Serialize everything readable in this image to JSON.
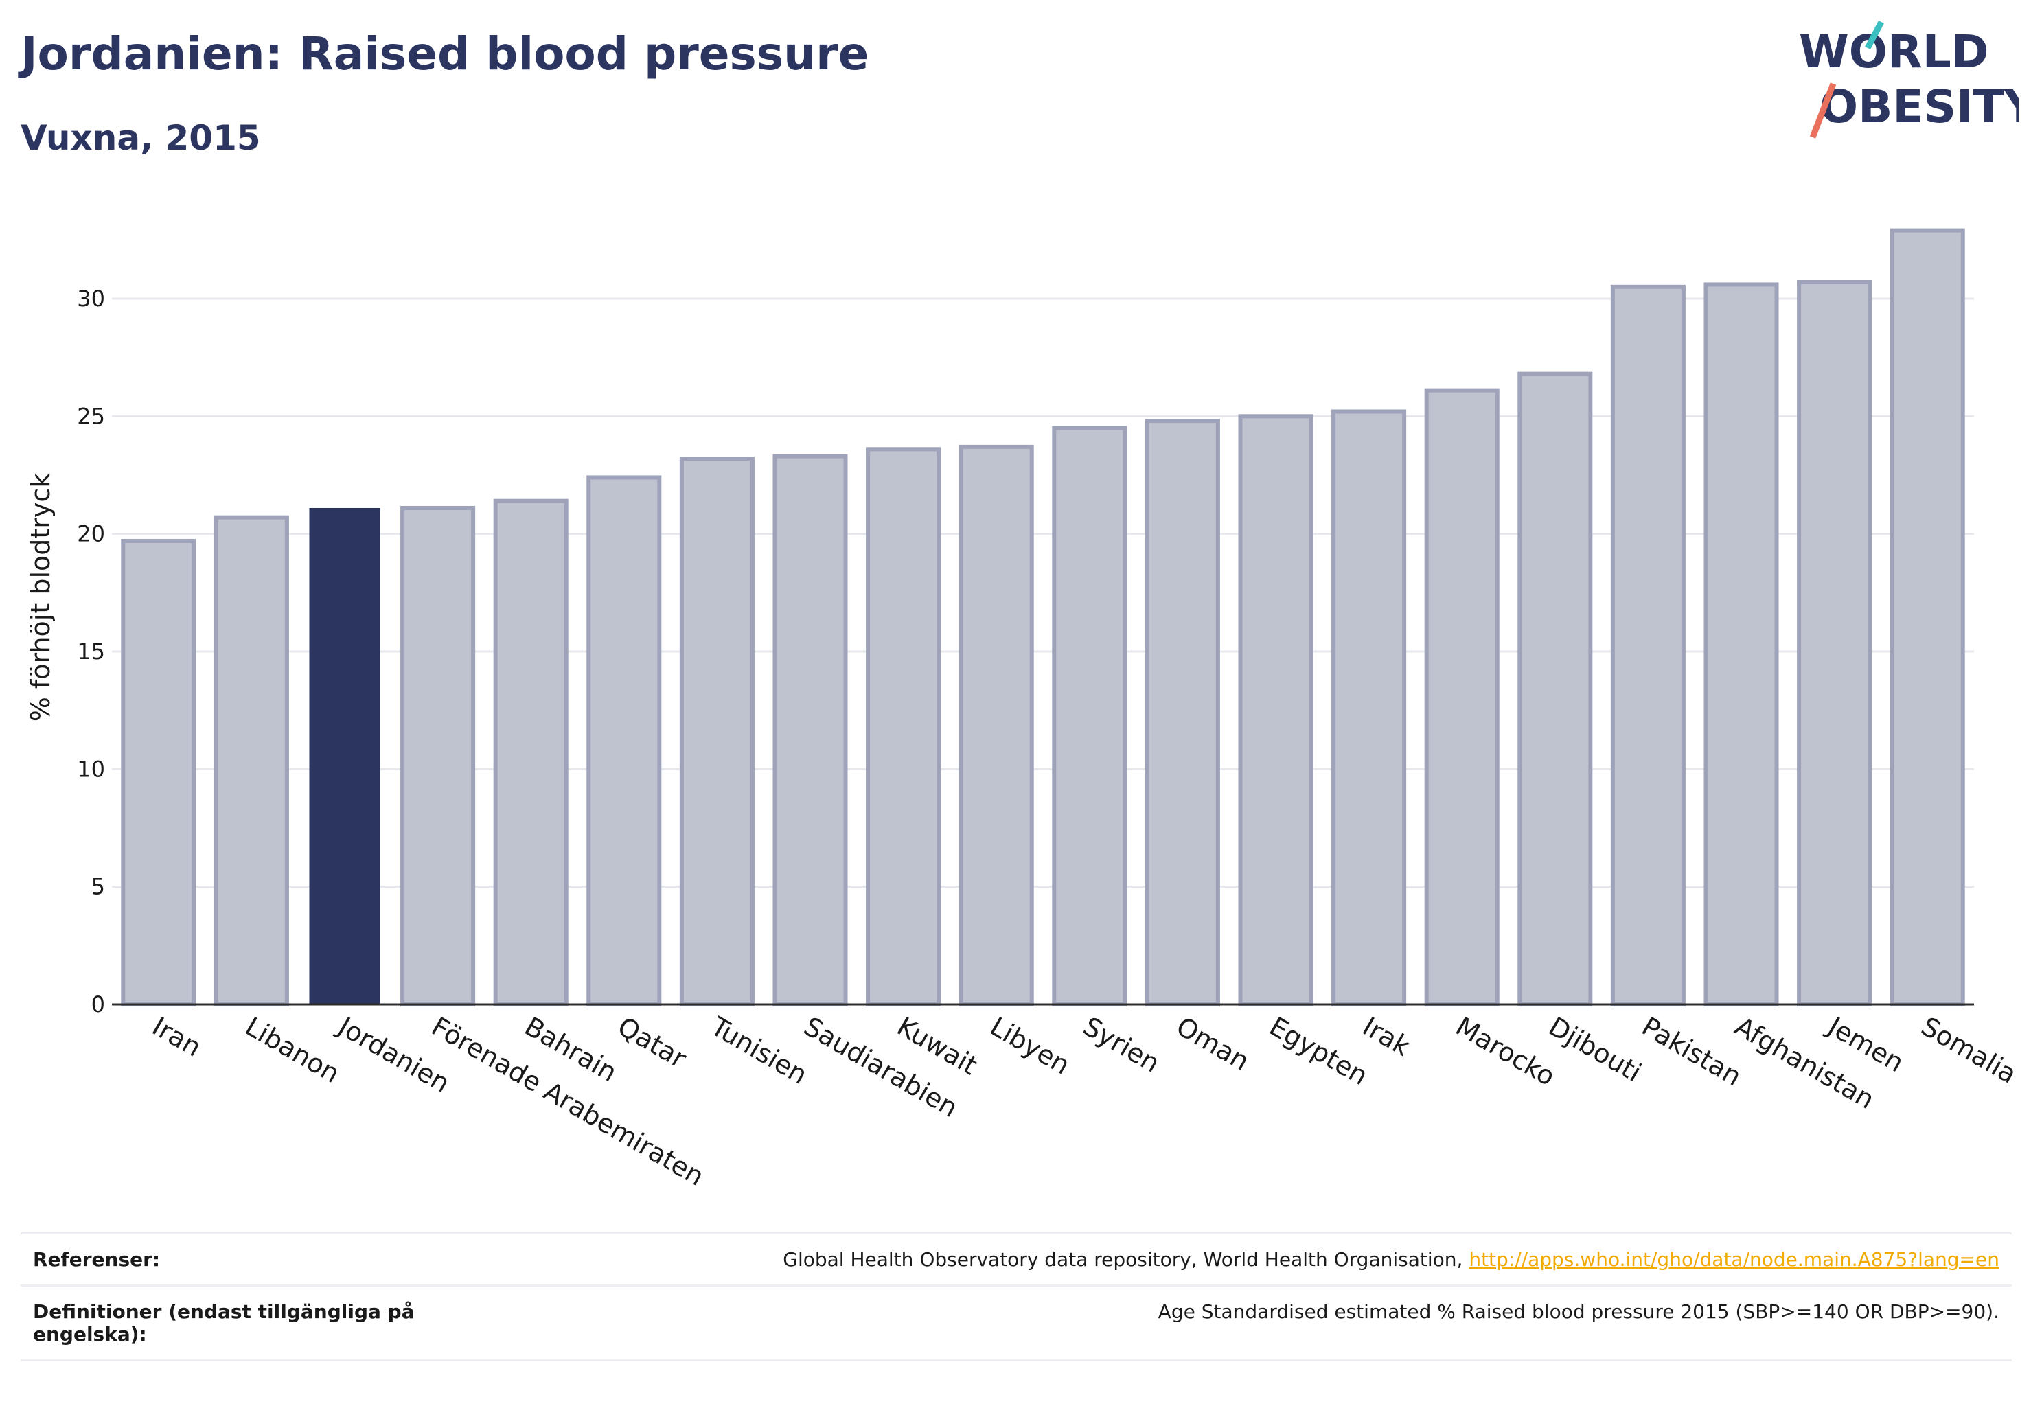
{
  "title": "Jordanien: Raised blood pressure",
  "subtitle": "Vuxna, 2015",
  "logo": {
    "line1": "WORLD",
    "line2": "OBESITY"
  },
  "colors": {
    "bar": "#bfc3d0",
    "bar_stroke": "#9ea3b9",
    "highlight": "#2b3560",
    "grid": "#e6e8ee",
    "axis": "#2b2b2b",
    "link": "#f2a900",
    "logo_teal": "#3bbfc0",
    "logo_coral": "#e8705c"
  },
  "chart_data": {
    "type": "bar",
    "title": "Jordanien: Raised blood pressure",
    "subtitle": "Vuxna, 2015",
    "xlabel": "",
    "ylabel": "% förhöjt blodtryck",
    "ylim": [
      0,
      33
    ],
    "yticks": [
      0,
      5,
      10,
      15,
      20,
      25,
      30
    ],
    "grid": true,
    "highlight": "Jordanien",
    "categories": [
      "Iran",
      "Libanon",
      "Jordanien",
      "Förenade Arabemiraten",
      "Bahrain",
      "Qatar",
      "Tunisien",
      "Saudiarabien",
      "Kuwait",
      "Libyen",
      "Syrien",
      "Oman",
      "Egypten",
      "Irak",
      "Marocko",
      "Djibouti",
      "Pakistan",
      "Afghanistan",
      "Jemen",
      "Somalia"
    ],
    "values": [
      19.7,
      20.7,
      21.1,
      21.1,
      21.4,
      22.4,
      23.2,
      23.3,
      23.6,
      23.7,
      24.5,
      24.8,
      25.0,
      25.2,
      26.1,
      26.8,
      30.5,
      30.6,
      30.7,
      32.9
    ]
  },
  "footer": {
    "references_label": "Referenser:",
    "references_text": "Global Health Observatory data repository, World Health Organisation, ",
    "references_link": "http://apps.who.int/gho/data/node.main.A875?lang=en",
    "definitions_label": "Definitioner (endast tillgängliga på engelska):",
    "definitions_text": "Age Standardised estimated % Raised blood pressure 2015 (SBP>=140 OR DBP>=90)."
  }
}
